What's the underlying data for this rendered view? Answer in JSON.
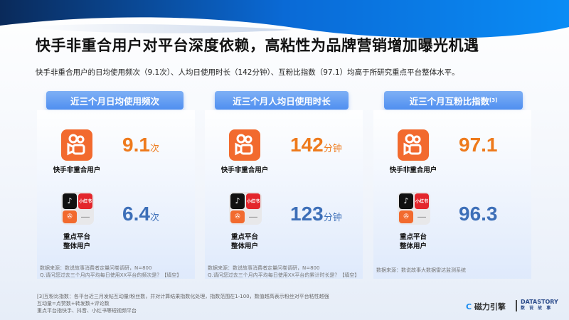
{
  "title": "快手非重合用户对平台深度依赖，高粘性为品牌营销增加曝光机遇",
  "subtitle": "快手非重合用户的日均使用频次（9.1次）、人均日使用时长（142分钟）、互粉比指数（97.1）均高于所研究重点平台整体水平。",
  "colors": {
    "accent_orange": "#ee7a1c",
    "accent_blue": "#3d6fb8",
    "pill": "#5f9bf2"
  },
  "labels": {
    "kuaishou_users": "快手非重合用户",
    "platform_users_line1": "重点平台",
    "platform_users_line2": "整体用户",
    "xiaohongshu": "小红书",
    "more": "……"
  },
  "panels": [
    {
      "header": "近三个月日均使用频次",
      "header_sup": "",
      "ks_value": "9.1",
      "ks_unit": "次",
      "all_value": "6.4",
      "all_unit": "次",
      "source_line1": "数据来源：数说故事消费者定量问卷调研，N=800",
      "source_line2": "Q.请问您过去三个月内平均每日使用XX平台的频次是？【填空】"
    },
    {
      "header": "近三个月人均日使用时长",
      "header_sup": "",
      "ks_value": "142",
      "ks_unit": "分钟",
      "all_value": "123",
      "all_unit": "分钟",
      "source_line1": "数据来源：数说故事消费者定量问卷调研，N=800",
      "source_line2": "Q.请问您过去三个月内平均每日使用XX平台的累计时长是？【填空】"
    },
    {
      "header": "近三个月互粉比指数",
      "header_sup": "[3]",
      "ks_value": "97.1",
      "ks_unit": "",
      "all_value": "96.3",
      "all_unit": "",
      "source_line1": "数据来源：数说故事大数据雷达监测系统",
      "source_line2": ""
    }
  ],
  "footnotes": [
    "[3]互粉比指数：各平台近三月发帖互动量/粉丝数，并对计算结果指数化处理，指数范围在1-100，数值越高表示粉丝对平台粘性越强",
    "互动量=点赞数+转发数+评论数",
    "重点平台指快手、抖音、小红书等短视频平台"
  ],
  "logos": {
    "cili": "磁力引擎",
    "datastory": "DATASTORY",
    "datastory_cn": "数 说 故 事"
  }
}
